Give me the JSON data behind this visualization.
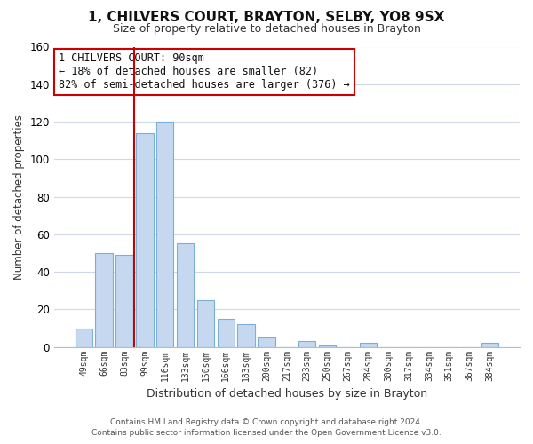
{
  "title": "1, CHILVERS COURT, BRAYTON, SELBY, YO8 9SX",
  "subtitle": "Size of property relative to detached houses in Brayton",
  "xlabel": "Distribution of detached houses by size in Brayton",
  "ylabel": "Number of detached properties",
  "bar_color": "#c5d8f0",
  "bar_edge_color": "#7bafd4",
  "background_color": "#ffffff",
  "grid_color": "#d0d8e8",
  "categories": [
    "49sqm",
    "66sqm",
    "83sqm",
    "99sqm",
    "116sqm",
    "133sqm",
    "150sqm",
    "166sqm",
    "183sqm",
    "200sqm",
    "217sqm",
    "233sqm",
    "250sqm",
    "267sqm",
    "284sqm",
    "300sqm",
    "317sqm",
    "334sqm",
    "351sqm",
    "367sqm",
    "384sqm"
  ],
  "values": [
    10,
    50,
    49,
    114,
    120,
    55,
    25,
    15,
    12,
    5,
    0,
    3,
    1,
    0,
    2,
    0,
    0,
    0,
    0,
    0,
    2
  ],
  "ylim": [
    0,
    160
  ],
  "yticks": [
    0,
    20,
    40,
    60,
    80,
    100,
    120,
    140,
    160
  ],
  "property_line_color": "#cc0000",
  "property_line_x": 2.5,
  "annotation_text": "1 CHILVERS COURT: 90sqm\n← 18% of detached houses are smaller (82)\n82% of semi-detached houses are larger (376) →",
  "annotation_box_color": "#ffffff",
  "annotation_box_edge_color": "#cc0000",
  "footer_line1": "Contains HM Land Registry data © Crown copyright and database right 2024.",
  "footer_line2": "Contains public sector information licensed under the Open Government Licence v3.0."
}
